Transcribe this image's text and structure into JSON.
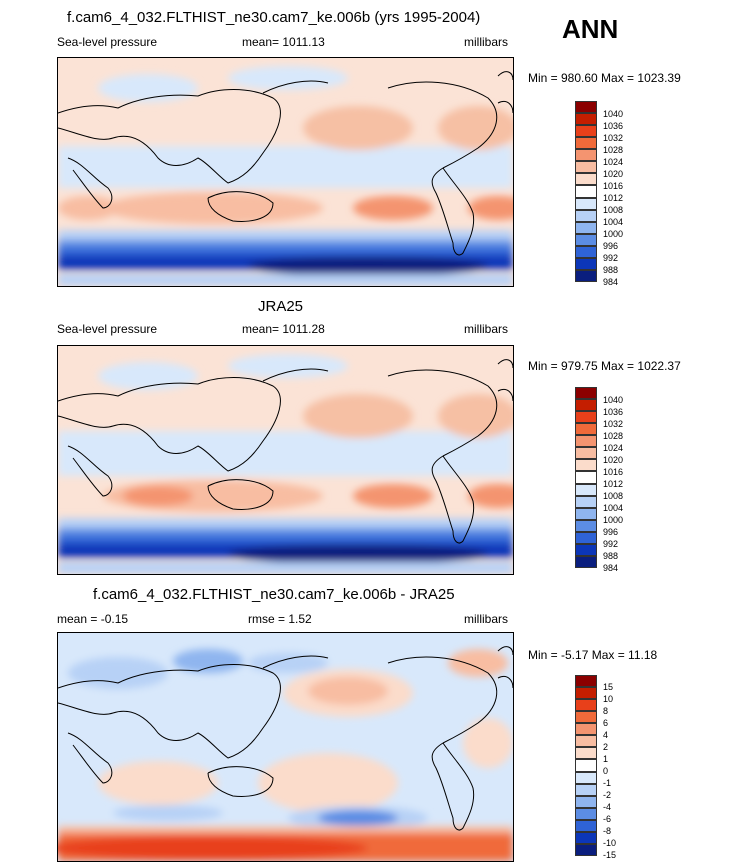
{
  "header": {
    "season": "ANN"
  },
  "chart_data": [
    {
      "type": "heatmap",
      "title": "f.cam6_4_032.FLTHIST_ne30.cam7_ke.006b (yrs 1995-2004)",
      "left_label": "Sea-level pressure",
      "center_label": "mean= 1011.13",
      "right_label": "millibars",
      "range_text": "Min = 980.60 Max = 1023.39",
      "min": 980.6,
      "max": 1023.39,
      "colorbar_levels": [
        "1040",
        "1036",
        "1032",
        "1028",
        "1024",
        "1020",
        "1016",
        "1012",
        "1008",
        "1004",
        "1000",
        "996",
        "992",
        "988",
        "984"
      ],
      "colorbar_colors": [
        "#8b0000",
        "#c41e00",
        "#e8401a",
        "#f06a3a",
        "#f49470",
        "#f8bda2",
        "#fbdccb",
        "#ffffff",
        "#d8e8fb",
        "#b7d1f6",
        "#8fb5ef",
        "#5c8de4",
        "#2f63d6",
        "#0c36b8",
        "#0a1e7e"
      ]
    },
    {
      "type": "heatmap",
      "title": "JRA25",
      "left_label": "Sea-level pressure",
      "center_label": "mean= 1011.28",
      "right_label": "millibars",
      "range_text": "Min = 979.75 Max = 1022.37",
      "min": 979.75,
      "max": 1022.37,
      "colorbar_levels": [
        "1040",
        "1036",
        "1032",
        "1028",
        "1024",
        "1020",
        "1016",
        "1012",
        "1008",
        "1004",
        "1000",
        "996",
        "992",
        "988",
        "984"
      ],
      "colorbar_colors": [
        "#8b0000",
        "#c41e00",
        "#e8401a",
        "#f06a3a",
        "#f49470",
        "#f8bda2",
        "#fbdccb",
        "#ffffff",
        "#d8e8fb",
        "#b7d1f6",
        "#8fb5ef",
        "#5c8de4",
        "#2f63d6",
        "#0c36b8",
        "#0a1e7e"
      ]
    },
    {
      "type": "heatmap",
      "title": "f.cam6_4_032.FLTHIST_ne30.cam7_ke.006b - JRA25",
      "left_label": "mean = -0.15",
      "center_label": "rmse = 1.52",
      "right_label": "millibars",
      "range_text": "Min = -5.17 Max = 11.18",
      "min": -5.17,
      "max": 11.18,
      "colorbar_levels": [
        "15",
        "10",
        "8",
        "6",
        "4",
        "2",
        "1",
        "0",
        "-1",
        "-2",
        "-4",
        "-6",
        "-8",
        "-10",
        "-15"
      ],
      "colorbar_colors": [
        "#8b0000",
        "#c41e00",
        "#e8401a",
        "#f06a3a",
        "#f49470",
        "#f8bda2",
        "#fbdccb",
        "#ffffff",
        "#d8e8fb",
        "#b7d1f6",
        "#8fb5ef",
        "#5c8de4",
        "#2f63d6",
        "#0c36b8",
        "#0a1e7e"
      ]
    }
  ]
}
